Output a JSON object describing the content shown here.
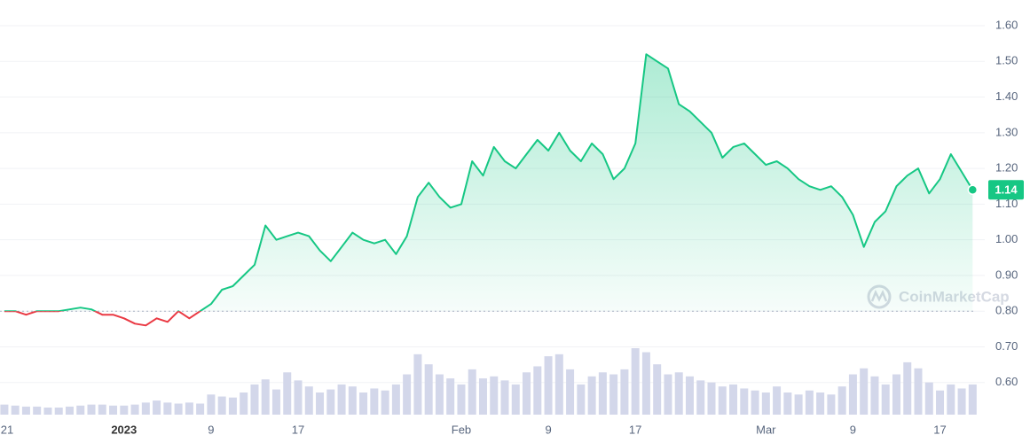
{
  "chart_data": {
    "type": "line",
    "series": [
      {
        "name": "Price",
        "color": "#16c784",
        "below_color": "#ea3943",
        "values": [
          0.8,
          0.8,
          0.79,
          0.8,
          0.8,
          0.8,
          0.805,
          0.81,
          0.805,
          0.79,
          0.79,
          0.78,
          0.765,
          0.76,
          0.78,
          0.77,
          0.8,
          0.78,
          0.8,
          0.82,
          0.86,
          0.87,
          0.9,
          0.93,
          1.04,
          1.0,
          1.01,
          1.02,
          1.01,
          0.97,
          0.94,
          0.98,
          1.02,
          1.0,
          0.99,
          1.0,
          0.96,
          1.01,
          1.12,
          1.16,
          1.12,
          1.09,
          1.1,
          1.22,
          1.18,
          1.26,
          1.22,
          1.2,
          1.24,
          1.28,
          1.25,
          1.3,
          1.25,
          1.22,
          1.27,
          1.24,
          1.17,
          1.2,
          1.27,
          1.52,
          1.5,
          1.48,
          1.38,
          1.36,
          1.33,
          1.3,
          1.23,
          1.26,
          1.27,
          1.24,
          1.21,
          1.22,
          1.2,
          1.17,
          1.15,
          1.14,
          1.15,
          1.12,
          1.07,
          0.98,
          1.05,
          1.08,
          1.15,
          1.18,
          1.2,
          1.13,
          1.17,
          1.24,
          1.19,
          1.14
        ]
      },
      {
        "name": "Volume",
        "color": "#d3d7ea",
        "values": [
          10,
          9,
          8,
          8,
          7,
          7,
          8,
          9,
          10,
          10,
          9,
          9,
          10,
          12,
          14,
          12,
          11,
          12,
          11,
          20,
          18,
          17,
          22,
          30,
          35,
          25,
          42,
          34,
          28,
          22,
          25,
          30,
          28,
          22,
          26,
          24,
          30,
          40,
          60,
          50,
          40,
          36,
          30,
          45,
          36,
          38,
          34,
          30,
          42,
          48,
          58,
          60,
          45,
          30,
          38,
          42,
          40,
          45,
          66,
          62,
          50,
          40,
          42,
          38,
          34,
          32,
          28,
          30,
          26,
          24,
          22,
          28,
          22,
          20,
          24,
          22,
          20,
          28,
          40,
          46,
          38,
          30,
          40,
          52,
          46,
          32,
          24,
          30,
          26,
          30
        ]
      }
    ],
    "baseline": 0.8,
    "current_price": 1.14,
    "watermark": "CoinMarketCap",
    "xlim": [
      -0.4,
      89.3
    ],
    "xticks": [
      {
        "value": 0,
        "label": "21"
      },
      {
        "value": 11,
        "label": "2023",
        "bold": true
      },
      {
        "value": 19,
        "label": "9"
      },
      {
        "value": 27,
        "label": "17"
      },
      {
        "value": 42,
        "label": "Feb"
      },
      {
        "value": 50,
        "label": "9"
      },
      {
        "value": 58,
        "label": "17"
      },
      {
        "value": 70,
        "label": "Mar"
      },
      {
        "value": 78,
        "label": "9"
      },
      {
        "value": 86,
        "label": "17"
      }
    ],
    "ylim": [
      0.51,
      1.672
    ],
    "yticks": [
      {
        "value": 0.6,
        "label": "0.60"
      },
      {
        "value": 0.7,
        "label": "0.70"
      },
      {
        "value": 0.8,
        "label": "0.80"
      },
      {
        "value": 0.9,
        "label": "0.90"
      },
      {
        "value": 1.0,
        "label": "1.00"
      },
      {
        "value": 1.1,
        "label": "1.10"
      },
      {
        "value": 1.2,
        "label": "1.20"
      },
      {
        "value": 1.3,
        "label": "1.30"
      },
      {
        "value": 1.4,
        "label": "1.40"
      },
      {
        "value": 1.5,
        "label": "1.50"
      },
      {
        "value": 1.6,
        "label": "1.60"
      }
    ],
    "grid": true
  }
}
